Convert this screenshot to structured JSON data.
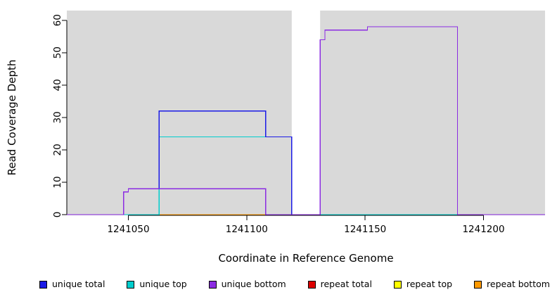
{
  "chart_data": {
    "type": "line",
    "step": true,
    "title": "",
    "xlabel": "Coordinate in Reference Genome",
    "ylabel": "Read Coverage Depth",
    "xlim": [
      1241024,
      1241226
    ],
    "ylim": [
      0,
      63
    ],
    "xticks": [
      1241050,
      1241100,
      1241150,
      1241200
    ],
    "yticks": [
      0,
      10,
      20,
      30,
      40,
      50,
      60
    ],
    "grid": false,
    "legend_position": "bottom",
    "plot_background": "#ffffff",
    "shaded_color": "#d9d9d9",
    "shaded_regions": [
      {
        "x0": 1241024,
        "x1": 1241119
      },
      {
        "x0": 1241131,
        "x1": 1241226
      }
    ],
    "series": [
      {
        "name": "repeat total",
        "color": "#dd0000",
        "points": [
          [
            1241024,
            0
          ],
          [
            1241226,
            0
          ]
        ]
      },
      {
        "name": "repeat top",
        "color": "#ffff00",
        "points": [
          [
            1241024,
            0
          ],
          [
            1241226,
            0
          ]
        ]
      },
      {
        "name": "repeat bottom",
        "color": "#ff9900",
        "points": [
          [
            1241024,
            0
          ],
          [
            1241226,
            0
          ]
        ]
      },
      {
        "name": "unique top",
        "color": "#00cdcd",
        "points": [
          [
            1241024,
            0
          ],
          [
            1241063,
            0
          ],
          [
            1241063,
            24
          ],
          [
            1241119,
            24
          ],
          [
            1241119,
            0
          ],
          [
            1241226,
            0
          ]
        ]
      },
      {
        "name": "unique total",
        "color": "#1a1ae6",
        "points": [
          [
            1241024,
            0
          ],
          [
            1241048,
            0
          ],
          [
            1241048,
            7
          ],
          [
            1241050,
            7
          ],
          [
            1241050,
            8
          ],
          [
            1241063,
            8
          ],
          [
            1241063,
            32
          ],
          [
            1241108,
            32
          ],
          [
            1241108,
            24
          ],
          [
            1241119,
            24
          ],
          [
            1241119,
            0
          ],
          [
            1241131,
            0
          ],
          [
            1241131,
            54
          ],
          [
            1241133,
            54
          ],
          [
            1241133,
            57
          ],
          [
            1241151,
            57
          ],
          [
            1241151,
            58
          ],
          [
            1241189,
            58
          ],
          [
            1241189,
            0
          ],
          [
            1241226,
            0
          ]
        ]
      },
      {
        "name": "unique bottom",
        "color": "#8b2be2",
        "points": [
          [
            1241024,
            0
          ],
          [
            1241048,
            0
          ],
          [
            1241048,
            7
          ],
          [
            1241050,
            7
          ],
          [
            1241050,
            8
          ],
          [
            1241108,
            8
          ],
          [
            1241108,
            0
          ],
          [
            1241131,
            0
          ],
          [
            1241131,
            54
          ],
          [
            1241133,
            54
          ],
          [
            1241133,
            57
          ],
          [
            1241151,
            57
          ],
          [
            1241151,
            58
          ],
          [
            1241189,
            58
          ],
          [
            1241189,
            0
          ],
          [
            1241226,
            0
          ]
        ]
      }
    ],
    "legend": [
      {
        "label": "unique total",
        "color": "#1a1ae6"
      },
      {
        "label": "unique top",
        "color": "#00cdcd"
      },
      {
        "label": "unique bottom",
        "color": "#8b2be2"
      },
      {
        "label": "repeat total",
        "color": "#dd0000"
      },
      {
        "label": "repeat top",
        "color": "#ffff00"
      },
      {
        "label": "repeat bottom",
        "color": "#ff9900"
      }
    ]
  }
}
